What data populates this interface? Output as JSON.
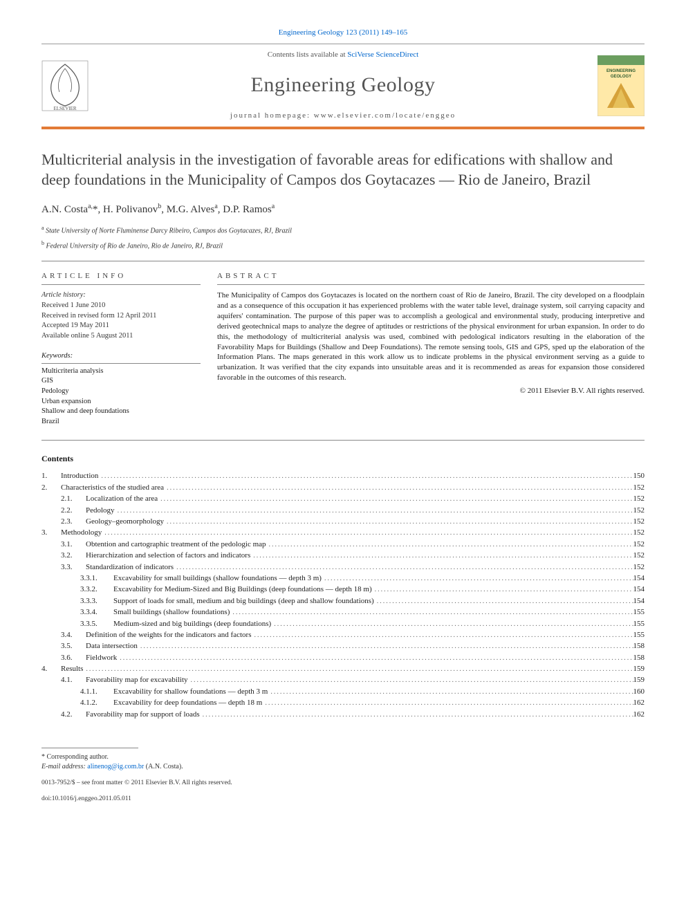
{
  "header": {
    "journal_link": "Engineering Geology 123 (2011) 149–165",
    "contents_line_prefix": "Contents lists available at ",
    "contents_line_link": "SciVerse ScienceDirect",
    "journal_name": "Engineering Geology",
    "homepage_label": "journal homepage: www.elsevier.com/locate/enggeo",
    "accent_color": "#e27b36",
    "link_color": "#0066cc",
    "cover_title_top": "ENGINEERING",
    "cover_title_bottom": "GEOLOGY",
    "cover_bg": "#ffe9a8",
    "cover_band": "#6b9e5f",
    "cover_tri": "#d6a23a"
  },
  "article": {
    "title": "Multicriterial analysis in the investigation of favorable areas for edifications with shallow and deep foundations in the Municipality of Campos dos Goytacazes — Rio de Janeiro, Brazil",
    "authors_html": "A.N. Costa",
    "author1": "A.N. Costa",
    "author1_sup": "a,",
    "author1_star": "*",
    "author2": ", H. Polivanov",
    "author2_sup": "b",
    "author3": ", M.G. Alves",
    "author3_sup": "a",
    "author4": ", D.P. Ramos",
    "author4_sup": "a",
    "aff_a_sup": "a",
    "aff_a": " State University of Norte Fluminense Darcy Ribeiro, Campos dos Goytacazes, RJ, Brazil",
    "aff_b_sup": "b",
    "aff_b": " Federal University of Rio de Janeiro, Rio de Janeiro, RJ, Brazil"
  },
  "info": {
    "section_label": "ARTICLE INFO",
    "history_title": "Article history:",
    "received": "Received 1 June 2010",
    "revised": "Received in revised form 12 April 2011",
    "accepted": "Accepted 19 May 2011",
    "online": "Available online 5 August 2011",
    "keywords_title": "Keywords:",
    "keywords": [
      "Multicriteria analysis",
      "GIS",
      "Pedology",
      "Urban expansion",
      "Shallow and deep foundations",
      "Brazil"
    ]
  },
  "abstract": {
    "section_label": "ABSTRACT",
    "text": "The Municipality of Campos dos Goytacazes is located on the northern coast of Rio de Janeiro, Brazil. The city developed on a floodplain and as a consequence of this occupation it has experienced problems with the water table level, drainage system, soil carrying capacity and aquifers' contamination. The purpose of this paper was to accomplish a geological and environmental study, producing interpretive and derived geotechnical maps to analyze the degree of aptitudes or restrictions of the physical environment for urban expansion. In order to do this, the methodology of multicriterial analysis was used, combined with pedological indicators resulting in the elaboration of the Favorability Maps for Buildings (Shallow and Deep Foundations). The remote sensing tools, GIS and GPS, sped up the elaboration of the Information Plans. The maps generated in this work allow us to indicate problems in the physical environment serving as a guide to urbanization. It was verified that the city expands into unsuitable areas and it is recommended as areas for expansion those considered favorable in the outcomes of this research.",
    "copyright": "© 2011 Elsevier B.V. All rights reserved."
  },
  "contents": {
    "heading": "Contents",
    "items": [
      {
        "num": "1.",
        "label": "Introduction",
        "page": "150",
        "indent": 0
      },
      {
        "num": "2.",
        "label": "Characteristics of the studied area",
        "page": "152",
        "indent": 0
      },
      {
        "num": "2.1.",
        "label": "Localization of the area",
        "page": "152",
        "indent": 1
      },
      {
        "num": "2.2.",
        "label": "Pedology",
        "page": "152",
        "indent": 1
      },
      {
        "num": "2.3.",
        "label": "Geology–geomorphology",
        "page": "152",
        "indent": 1
      },
      {
        "num": "3.",
        "label": "Methodology",
        "page": "152",
        "indent": 0
      },
      {
        "num": "3.1.",
        "label": "Obtention and cartographic treatment of the pedologic map",
        "page": "152",
        "indent": 1
      },
      {
        "num": "3.2.",
        "label": "Hierarchization and selection of factors and indicators",
        "page": "152",
        "indent": 1
      },
      {
        "num": "3.3.",
        "label": "Standardization of indicators",
        "page": "152",
        "indent": 1
      },
      {
        "num": "3.3.1.",
        "label": "Excavability for small buildings (shallow foundations — depth 3 m)",
        "page": "154",
        "indent": 2
      },
      {
        "num": "3.3.2.",
        "label": "Excavability for Medium-Sized and Big Buildings (deep foundations — depth 18 m)",
        "page": "154",
        "indent": 2
      },
      {
        "num": "3.3.3.",
        "label": "Support of loads for small, medium and big buildings (deep and shallow foundations)",
        "page": "154",
        "indent": 2
      },
      {
        "num": "3.3.4.",
        "label": "Small buildings (shallow foundations)",
        "page": "155",
        "indent": 2
      },
      {
        "num": "3.3.5.",
        "label": "Medium-sized and big buildings (deep foundations)",
        "page": "155",
        "indent": 2
      },
      {
        "num": "3.4.",
        "label": "Definition of the weights for the indicators and factors",
        "page": "155",
        "indent": 1
      },
      {
        "num": "3.5.",
        "label": "Data intersection",
        "page": "158",
        "indent": 1
      },
      {
        "num": "3.6.",
        "label": "Fieldwork",
        "page": "158",
        "indent": 1
      },
      {
        "num": "4.",
        "label": "Results",
        "page": "159",
        "indent": 0
      },
      {
        "num": "4.1.",
        "label": "Favorability map for excavability",
        "page": "159",
        "indent": 1
      },
      {
        "num": "4.1.1.",
        "label": "Excavability for shallow foundations — depth 3 m",
        "page": "160",
        "indent": 2
      },
      {
        "num": "4.1.2.",
        "label": "Excavability for deep foundations — depth 18 m",
        "page": "162",
        "indent": 2
      },
      {
        "num": "4.2.",
        "label": "Favorability map for support of loads",
        "page": "162",
        "indent": 1
      }
    ]
  },
  "footer": {
    "corresponding": "* Corresponding author.",
    "email_label": "E-mail address: ",
    "email": "alinenog@ig.com.br",
    "email_name": " (A.N. Costa).",
    "issn_line": "0013-7952/$ – see front matter © 2011 Elsevier B.V. All rights reserved.",
    "doi": "doi:10.1016/j.enggeo.2011.05.011"
  },
  "style": {
    "body_font": "Georgia, 'Times New Roman', serif",
    "title_fontsize": 22,
    "abstract_fontsize": 11,
    "toc_fontsize": 11,
    "text_color": "#1a1a1a",
    "rule_color": "#888888"
  }
}
